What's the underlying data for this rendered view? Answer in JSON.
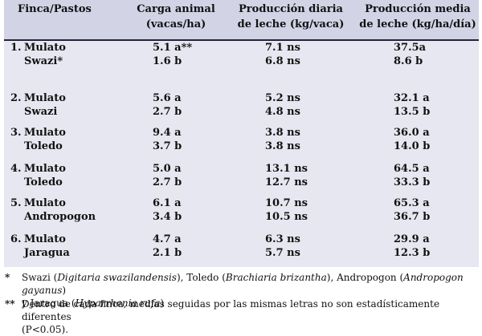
{
  "header": {
    "col1": "Finca/Pastos",
    "col2_l1": "Carga animal",
    "col2_l2": "(vacas/ha)",
    "col3_l1": "Producción diaria",
    "col3_l2": "de leche (kg/vaca)",
    "col4_l1": "Producción media",
    "col4_l2": "de leche (kg/ha/día)"
  },
  "rows": [
    {
      "num": "1.",
      "pasto": "Mulato",
      "carga": "5.1 a**",
      "diaria": "7.1 ns",
      "media": "37.5a"
    },
    {
      "num": "",
      "pasto": "Swazi*",
      "carga": "1.6 b",
      "diaria": "6.8 ns",
      "media": "8.6 b"
    },
    {
      "num": "2.",
      "pasto": "Mulato",
      "carga": "5.6 a",
      "diaria": "5.2 ns",
      "media": "32.1 a"
    },
    {
      "num": "",
      "pasto": "Swazi",
      "carga": "2.7 b",
      "diaria": "4.8 ns",
      "media": "13.5 b"
    },
    {
      "num": "3.",
      "pasto": "Mulato",
      "carga": "9.4 a",
      "diaria": "3.8 ns",
      "media": "36.0 a"
    },
    {
      "num": "",
      "pasto": "Toledo",
      "carga": "3.7 b",
      "diaria": "3.8 ns",
      "media": "14.0 b"
    },
    {
      "num": "4.",
      "pasto": "Mulato",
      "carga": "5.0 a",
      "diaria": "13.1 ns",
      "media": "64.5 a"
    },
    {
      "num": "",
      "pasto": "Toledo",
      "carga": "2.7 b",
      "diaria": "12.7 ns",
      "media": "33.3 b"
    },
    {
      "num": "5.",
      "pasto": "Mulato",
      "carga": "6.1 a",
      "diaria": "10.7 ns",
      "media": "65.3 a"
    },
    {
      "num": "",
      "pasto": "Andropogon",
      "carga": "3.4 b",
      "diaria": "10.5 ns",
      "media": "36.7 b"
    },
    {
      "num": "6.",
      "pasto": "Mulato",
      "carga": "4.7 a",
      "diaria": "6.3 ns",
      "media": "29.9 a"
    },
    {
      "num": "",
      "pasto": "Jaragua",
      "carga": "2.1 b",
      "diaria": "5.7 ns",
      "media": "12.3 b"
    }
  ],
  "notes": {
    "n1_mark": "*",
    "n1_a": "Swazi (",
    "n1_b": "Digitaria swazilandensis",
    "n1_c": "), Toledo (",
    "n1_d": "Brachiaria brizantha",
    "n1_e": "),  Andropogon (",
    "n1_f": "Andropogon gayanus",
    "n1_g": ")",
    "n1_h": "y Jaragua (",
    "n1_i": "Hyparrhenia rufa",
    "n1_j": ")",
    "n2_mark": "**",
    "n2_a": "Dentro de cada finca, medias seguidas por las mismas letras no son estadísticamente diferentes",
    "n2_b": "(P<0.05)."
  }
}
